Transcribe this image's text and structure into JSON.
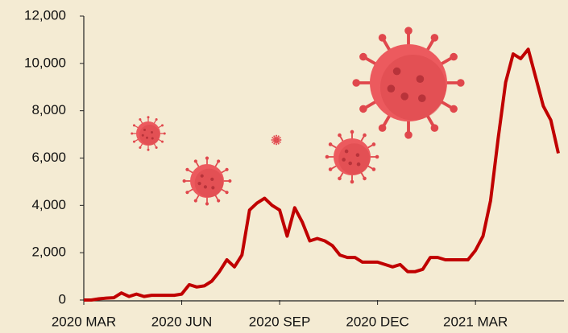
{
  "chart_data": {
    "type": "line",
    "categories": [
      "2020 MAR",
      null,
      null,
      null,
      null,
      null,
      null,
      null,
      null,
      null,
      null,
      null,
      null,
      "2020 JUN",
      null,
      null,
      null,
      null,
      null,
      null,
      null,
      null,
      null,
      null,
      null,
      null,
      "2020 SEP",
      null,
      null,
      null,
      null,
      null,
      null,
      null,
      null,
      null,
      null,
      null,
      null,
      "2020 DEC",
      null,
      null,
      null,
      null,
      null,
      null,
      null,
      null,
      null,
      null,
      null,
      null,
      "2021 MAR",
      null,
      null,
      null,
      null,
      null,
      null,
      null,
      null,
      null,
      null,
      null
    ],
    "series": [
      {
        "color": "#c00000",
        "values": [
          0,
          0,
          50,
          80,
          100,
          300,
          150,
          250,
          150,
          200,
          200,
          200,
          200,
          250,
          650,
          550,
          600,
          800,
          1200,
          1700,
          1400,
          1900,
          3800,
          4100,
          4300,
          4000,
          3800,
          2700,
          3900,
          3300,
          2500,
          2600,
          2500,
          2300,
          1900,
          1800,
          1800,
          1600,
          1600,
          1600,
          1500,
          1400,
          1500,
          1200,
          1200,
          1300,
          1800,
          1800,
          1700,
          1700,
          1700,
          1700,
          2100,
          2700,
          4200,
          6800,
          9200,
          10400,
          10200,
          10600,
          9400,
          8200,
          7600,
          6200
        ]
      }
    ],
    "ylim": [
      0,
      12000
    ],
    "yticks": [
      0,
      {
        "value": 2000,
        "label": "2,000"
      },
      {
        "value": 4000,
        "label": "4,000"
      },
      {
        "value": 6000,
        "label": "6,000"
      },
      {
        "value": 8000,
        "label": "8,000"
      },
      {
        "value": 10000,
        "label": "10,000"
      },
      {
        "value": 12000,
        "label": "12,000"
      }
    ]
  }
}
